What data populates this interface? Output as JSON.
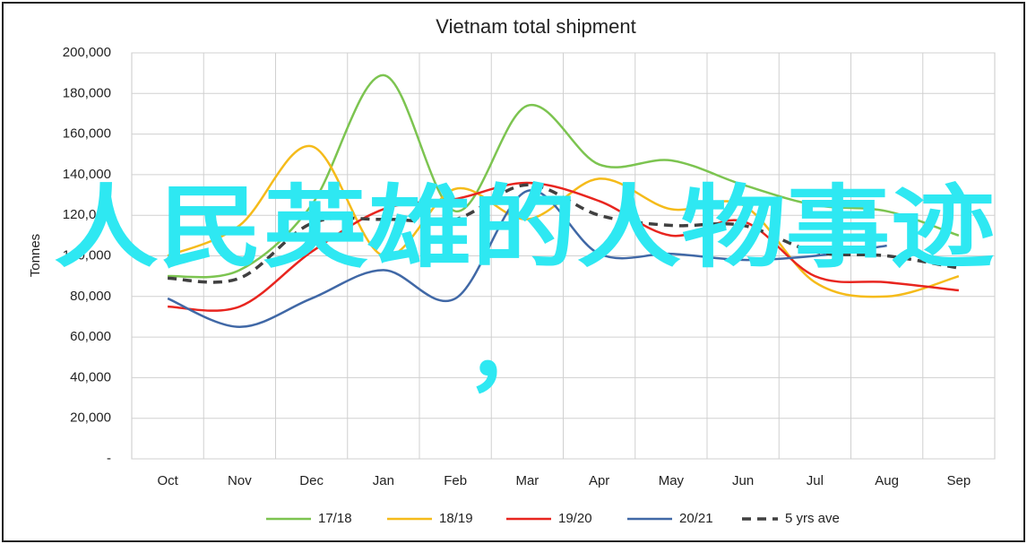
{
  "chart_data": {
    "type": "line",
    "title": "Vietnam total shipment",
    "y_label": "Tonnes",
    "categories": [
      "Oct",
      "Nov",
      "Dec",
      "Jan",
      "Feb",
      "Mar",
      "Apr",
      "May",
      "Jun",
      "Jul",
      "Aug",
      "Sep"
    ],
    "ylim": [
      0,
      200000
    ],
    "yticks": [
      {
        "value": 0,
        "label": "-"
      },
      {
        "value": 20000,
        "label": "20,000"
      },
      {
        "value": 40000,
        "label": "40,000"
      },
      {
        "value": 60000,
        "label": "60,000"
      },
      {
        "value": 80000,
        "label": "80,000"
      },
      {
        "value": 100000,
        "label": "100,000"
      },
      {
        "value": 120000,
        "label": "120,000"
      },
      {
        "value": 140000,
        "label": "140,000"
      },
      {
        "value": 160000,
        "label": "160,000"
      },
      {
        "value": 180000,
        "label": "180,000"
      },
      {
        "value": 200000,
        "label": "200,000"
      }
    ],
    "grid": true,
    "legend": "bottom",
    "series": [
      {
        "name": "17/18",
        "color": "#7cc450",
        "values": [
          90000,
          93000,
          125000,
          189000,
          122000,
          174000,
          145000,
          147000,
          135000,
          125000,
          122000,
          110000
        ]
      },
      {
        "name": "18/19",
        "color": "#f5bb1a",
        "values": [
          100000,
          115000,
          154000,
          100000,
          133000,
          118000,
          138000,
          123000,
          125000,
          87000,
          80000,
          90000
        ]
      },
      {
        "name": "19/20",
        "color": "#e8251f",
        "values": [
          75000,
          75000,
          102000,
          123000,
          128000,
          136000,
          127000,
          110000,
          117000,
          90000,
          87000,
          83000
        ]
      },
      {
        "name": "20/21",
        "color": "#4068a6",
        "values": [
          79000,
          65000,
          79000,
          93000,
          79000,
          132000,
          101000,
          101000,
          98000,
          100000,
          105000,
          null
        ]
      },
      {
        "name": "5 yrs ave",
        "color": "#404040",
        "dashed": true,
        "values": [
          89000,
          89000,
          116000,
          118000,
          118000,
          135000,
          120000,
          115000,
          115000,
          102000,
          100000,
          94000
        ]
      }
    ],
    "annotations": [
      "人民英雄的人物事迹",
      "，"
    ],
    "annotation_color": "#2ee8f2"
  }
}
